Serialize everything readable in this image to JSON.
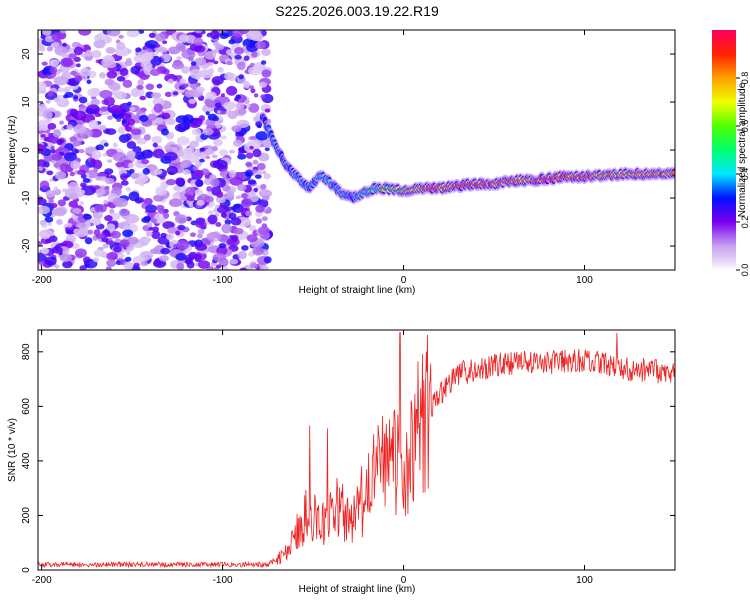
{
  "title": "S225.2026.003.19.22.R19",
  "chart_data": [
    {
      "type": "heatmap",
      "title": "S225.2026.003.19.22.R19",
      "xlabel": "Height of straight line (km)",
      "ylabel": "Frequency (Hz)",
      "xlim": [
        -202,
        150
      ],
      "ylim": [
        -25,
        25
      ],
      "x_ticks": [
        -200,
        -100,
        0,
        100
      ],
      "x_tick_labels": [
        "-200",
        "-100",
        "0",
        "100"
      ],
      "y_ticks": [
        -20,
        -10,
        0,
        10,
        20
      ],
      "y_tick_labels": [
        "-20",
        "-10",
        "0",
        "10",
        "20"
      ],
      "colorbar": {
        "label": "Normalized spectral amplitude",
        "range": [
          0,
          1
        ],
        "ticks": [
          0.0,
          0.2,
          0.4,
          0.6,
          0.8
        ],
        "tick_labels": [
          "0.0",
          "0.2",
          "0.4",
          "0.6",
          "0.8"
        ]
      },
      "noise_region": {
        "x_range": [
          -202,
          -75
        ],
        "amplitude_range": [
          0.05,
          0.3
        ]
      },
      "signal_ridge": {
        "description": "peak frequency versus height",
        "x": [
          -78,
          -72,
          -65,
          -58,
          -52,
          -46,
          -40,
          -34,
          -28,
          -22,
          -16,
          -10,
          0,
          10,
          20,
          30,
          40,
          50,
          60,
          70,
          80,
          90,
          100,
          110,
          120,
          130,
          140,
          150
        ],
        "frequency": [
          7,
          2,
          -3,
          -6,
          -8,
          -5,
          -7,
          -9,
          -10,
          -9,
          -8,
          -8,
          -8.5,
          -8,
          -8,
          -7.5,
          -7,
          -7,
          -6.5,
          -6.2,
          -6,
          -5.5,
          -5.5,
          -5.3,
          -5,
          -5,
          -5,
          -5
        ],
        "peak_amplitude": [
          0.3,
          0.35,
          0.35,
          0.4,
          0.35,
          0.45,
          0.4,
          0.4,
          0.35,
          0.45,
          0.5,
          0.6,
          0.7,
          0.8,
          0.85,
          0.9,
          0.9,
          0.9,
          0.85,
          0.85,
          0.9,
          0.85,
          0.85,
          0.8,
          0.8,
          0.8,
          0.8,
          0.8
        ]
      }
    },
    {
      "type": "line",
      "xlabel": "Height of straight line (km)",
      "ylabel": "SNR (10 * v/v)",
      "xlim": [
        -202,
        150
      ],
      "ylim": [
        0,
        880
      ],
      "x_ticks": [
        -200,
        -100,
        0,
        100
      ],
      "x_tick_labels": [
        "-200",
        "-100",
        "0",
        "100"
      ],
      "y_ticks": [
        0,
        200,
        400,
        600,
        800
      ],
      "y_tick_labels": [
        "0",
        "200",
        "400",
        "600",
        "800"
      ],
      "series": [
        {
          "name": "SNR",
          "color": "#ee2222",
          "x": [
            -202,
            -150,
            -100,
            -75,
            -65,
            -60,
            -55,
            -50,
            -45,
            -40,
            -35,
            -30,
            -25,
            -20,
            -15,
            -10,
            -5,
            0,
            5,
            10,
            20,
            30,
            40,
            50,
            60,
            80,
            100,
            120,
            140,
            150
          ],
          "y": [
            20,
            20,
            20,
            20,
            60,
            130,
            190,
            210,
            170,
            230,
            220,
            170,
            230,
            280,
            360,
            380,
            420,
            300,
            440,
            560,
            640,
            720,
            730,
            750,
            760,
            760,
            770,
            740,
            730,
            720
          ],
          "spikes": [
            {
              "x": -52,
              "y": 530
            },
            {
              "x": -42,
              "y": 520
            },
            {
              "x": -2,
              "y": 870
            },
            {
              "x": 118,
              "y": 870
            }
          ]
        }
      ]
    }
  ]
}
